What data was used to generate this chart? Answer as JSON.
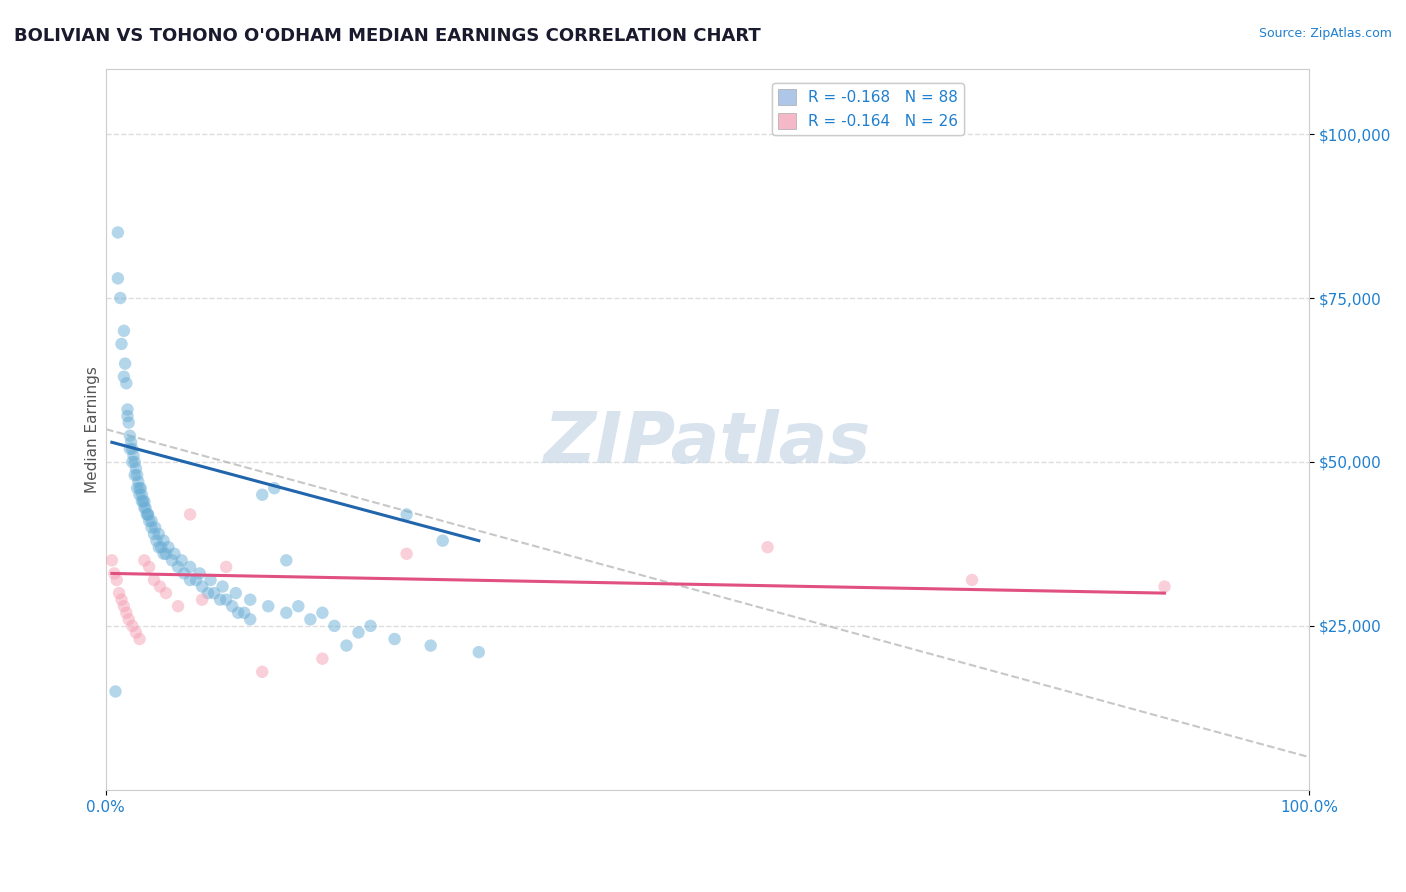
{
  "title": "BOLIVIAN VS TOHONO O'ODHAM MEDIAN EARNINGS CORRELATION CHART",
  "source": "Source: ZipAtlas.com",
  "xlabel": "",
  "ylabel": "Median Earnings",
  "xlim": [
    0.0,
    1.0
  ],
  "ylim": [
    0,
    110000
  ],
  "yticks": [
    25000,
    50000,
    75000,
    100000
  ],
  "ytick_labels": [
    "$25,000",
    "$50,000",
    "$75,000",
    "$100,000"
  ],
  "xtick_labels": [
    "0.0%",
    "100.0%"
  ],
  "legend_blue_text": "R = -0.168   N = 88",
  "legend_pink_text": "R = -0.164   N = 26",
  "legend_blue_color": "#aec6e8",
  "legend_pink_color": "#f4b8c8",
  "blue_scatter_color": "#6baed6",
  "pink_scatter_color": "#f4a0b4",
  "blue_line_color": "#2166ac",
  "pink_line_color": "#e05080",
  "dashed_line_color": "#b0b0b0",
  "watermark": "ZIPatlas",
  "watermark_color": "#c8d8e8",
  "title_color": "#1a1a2e",
  "axis_label_color": "#555555",
  "tick_color": "#2080d0",
  "blue_x": [
    0.008,
    0.01,
    0.012,
    0.015,
    0.016,
    0.017,
    0.018,
    0.019,
    0.02,
    0.021,
    0.022,
    0.023,
    0.024,
    0.025,
    0.026,
    0.027,
    0.028,
    0.029,
    0.03,
    0.031,
    0.032,
    0.033,
    0.034,
    0.035,
    0.036,
    0.038,
    0.04,
    0.042,
    0.044,
    0.046,
    0.048,
    0.05,
    0.055,
    0.06,
    0.065,
    0.07,
    0.075,
    0.08,
    0.085,
    0.09,
    0.095,
    0.1,
    0.105,
    0.11,
    0.115,
    0.12,
    0.13,
    0.14,
    0.15,
    0.16,
    0.18,
    0.2,
    0.22,
    0.25,
    0.28,
    0.01,
    0.013,
    0.015,
    0.018,
    0.02,
    0.022,
    0.024,
    0.026,
    0.028,
    0.03,
    0.032,
    0.035,
    0.038,
    0.041,
    0.044,
    0.048,
    0.052,
    0.057,
    0.063,
    0.07,
    0.078,
    0.087,
    0.097,
    0.108,
    0.12,
    0.135,
    0.15,
    0.17,
    0.19,
    0.21,
    0.24,
    0.27,
    0.31
  ],
  "blue_y": [
    15000,
    85000,
    75000,
    70000,
    65000,
    62000,
    58000,
    56000,
    54000,
    53000,
    52000,
    51000,
    50000,
    49000,
    48000,
    47000,
    46000,
    46000,
    45000,
    44000,
    44000,
    43000,
    42000,
    42000,
    41000,
    40000,
    39000,
    38000,
    37000,
    37000,
    36000,
    36000,
    35000,
    34000,
    33000,
    32000,
    32000,
    31000,
    30000,
    30000,
    29000,
    29000,
    28000,
    27000,
    27000,
    26000,
    45000,
    46000,
    35000,
    28000,
    27000,
    22000,
    25000,
    42000,
    38000,
    78000,
    68000,
    63000,
    57000,
    52000,
    50000,
    48000,
    46000,
    45000,
    44000,
    43000,
    42000,
    41000,
    40000,
    39000,
    38000,
    37000,
    36000,
    35000,
    34000,
    33000,
    32000,
    31000,
    30000,
    29000,
    28000,
    27000,
    26000,
    25000,
    24000,
    23000,
    22000,
    21000
  ],
  "pink_x": [
    0.005,
    0.007,
    0.009,
    0.011,
    0.013,
    0.015,
    0.017,
    0.019,
    0.022,
    0.025,
    0.028,
    0.032,
    0.036,
    0.04,
    0.045,
    0.05,
    0.06,
    0.07,
    0.08,
    0.1,
    0.13,
    0.18,
    0.25,
    0.55,
    0.72,
    0.88
  ],
  "pink_y": [
    35000,
    33000,
    32000,
    30000,
    29000,
    28000,
    27000,
    26000,
    25000,
    24000,
    23000,
    35000,
    34000,
    32000,
    31000,
    30000,
    28000,
    42000,
    29000,
    34000,
    18000,
    20000,
    36000,
    37000,
    32000,
    31000
  ],
  "blue_trend_x": [
    0.005,
    0.31
  ],
  "blue_trend_y": [
    53000,
    38000
  ],
  "pink_trend_x": [
    0.005,
    0.88
  ],
  "pink_trend_y": [
    33000,
    30000
  ],
  "dashed_trend_x": [
    0.0,
    1.0
  ],
  "dashed_trend_y": [
    55000,
    5000
  ],
  "background_color": "#ffffff",
  "grid_color": "#dddddd",
  "title_fontsize": 13,
  "axis_fontsize": 11,
  "tick_fontsize": 11,
  "legend_fontsize": 11,
  "scatter_size": 80,
  "scatter_alpha": 0.5
}
